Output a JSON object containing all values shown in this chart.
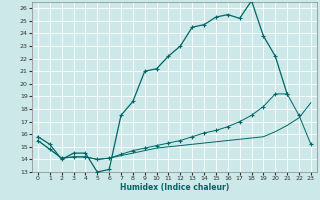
{
  "xlabel": "Humidex (Indice chaleur)",
  "bg_color": "#cce8e8",
  "grid_color": "#ffffff",
  "line_color": "#006666",
  "xlim": [
    -0.5,
    23.5
  ],
  "ylim": [
    13,
    26.5
  ],
  "xticks": [
    0,
    1,
    2,
    3,
    4,
    5,
    6,
    7,
    8,
    9,
    10,
    11,
    12,
    13,
    14,
    15,
    16,
    17,
    18,
    19,
    20,
    21,
    22,
    23
  ],
  "yticks": [
    13,
    14,
    15,
    16,
    17,
    18,
    19,
    20,
    21,
    22,
    23,
    24,
    25,
    26
  ],
  "line1_x": [
    0,
    1,
    2,
    3,
    4,
    5,
    6,
    7,
    8,
    9,
    10,
    11,
    12,
    13,
    14,
    15,
    16,
    17,
    18,
    19,
    20,
    21
  ],
  "line1_y": [
    15.8,
    15.2,
    14.0,
    14.5,
    14.5,
    13.0,
    13.2,
    17.5,
    18.6,
    21.0,
    21.2,
    22.2,
    23.0,
    24.5,
    24.7,
    25.3,
    25.5,
    25.2,
    26.6,
    23.8,
    22.2,
    19.2
  ],
  "line2_x": [
    0,
    1,
    2,
    3,
    4,
    5,
    6,
    7,
    8,
    9,
    10,
    11,
    12,
    13,
    14,
    15,
    16,
    17,
    18,
    19,
    20,
    21,
    22,
    23
  ],
  "line2_y": [
    15.5,
    14.8,
    14.1,
    14.2,
    14.2,
    14.0,
    14.1,
    14.3,
    14.5,
    14.7,
    14.9,
    15.0,
    15.1,
    15.2,
    15.3,
    15.4,
    15.5,
    15.6,
    15.7,
    15.8,
    16.2,
    16.7,
    17.3,
    18.5
  ],
  "line3_x": [
    0,
    1,
    2,
    3,
    4,
    5,
    6,
    7,
    8,
    9,
    10,
    11,
    12,
    13,
    14,
    15,
    16,
    17,
    18,
    19,
    20,
    21,
    22,
    23
  ],
  "line3_y": [
    15.5,
    14.8,
    14.1,
    14.2,
    14.2,
    14.0,
    14.1,
    14.4,
    14.7,
    14.9,
    15.1,
    15.3,
    15.5,
    15.8,
    16.1,
    16.3,
    16.6,
    17.0,
    17.5,
    18.2,
    19.2,
    19.2,
    17.5,
    15.2
  ]
}
